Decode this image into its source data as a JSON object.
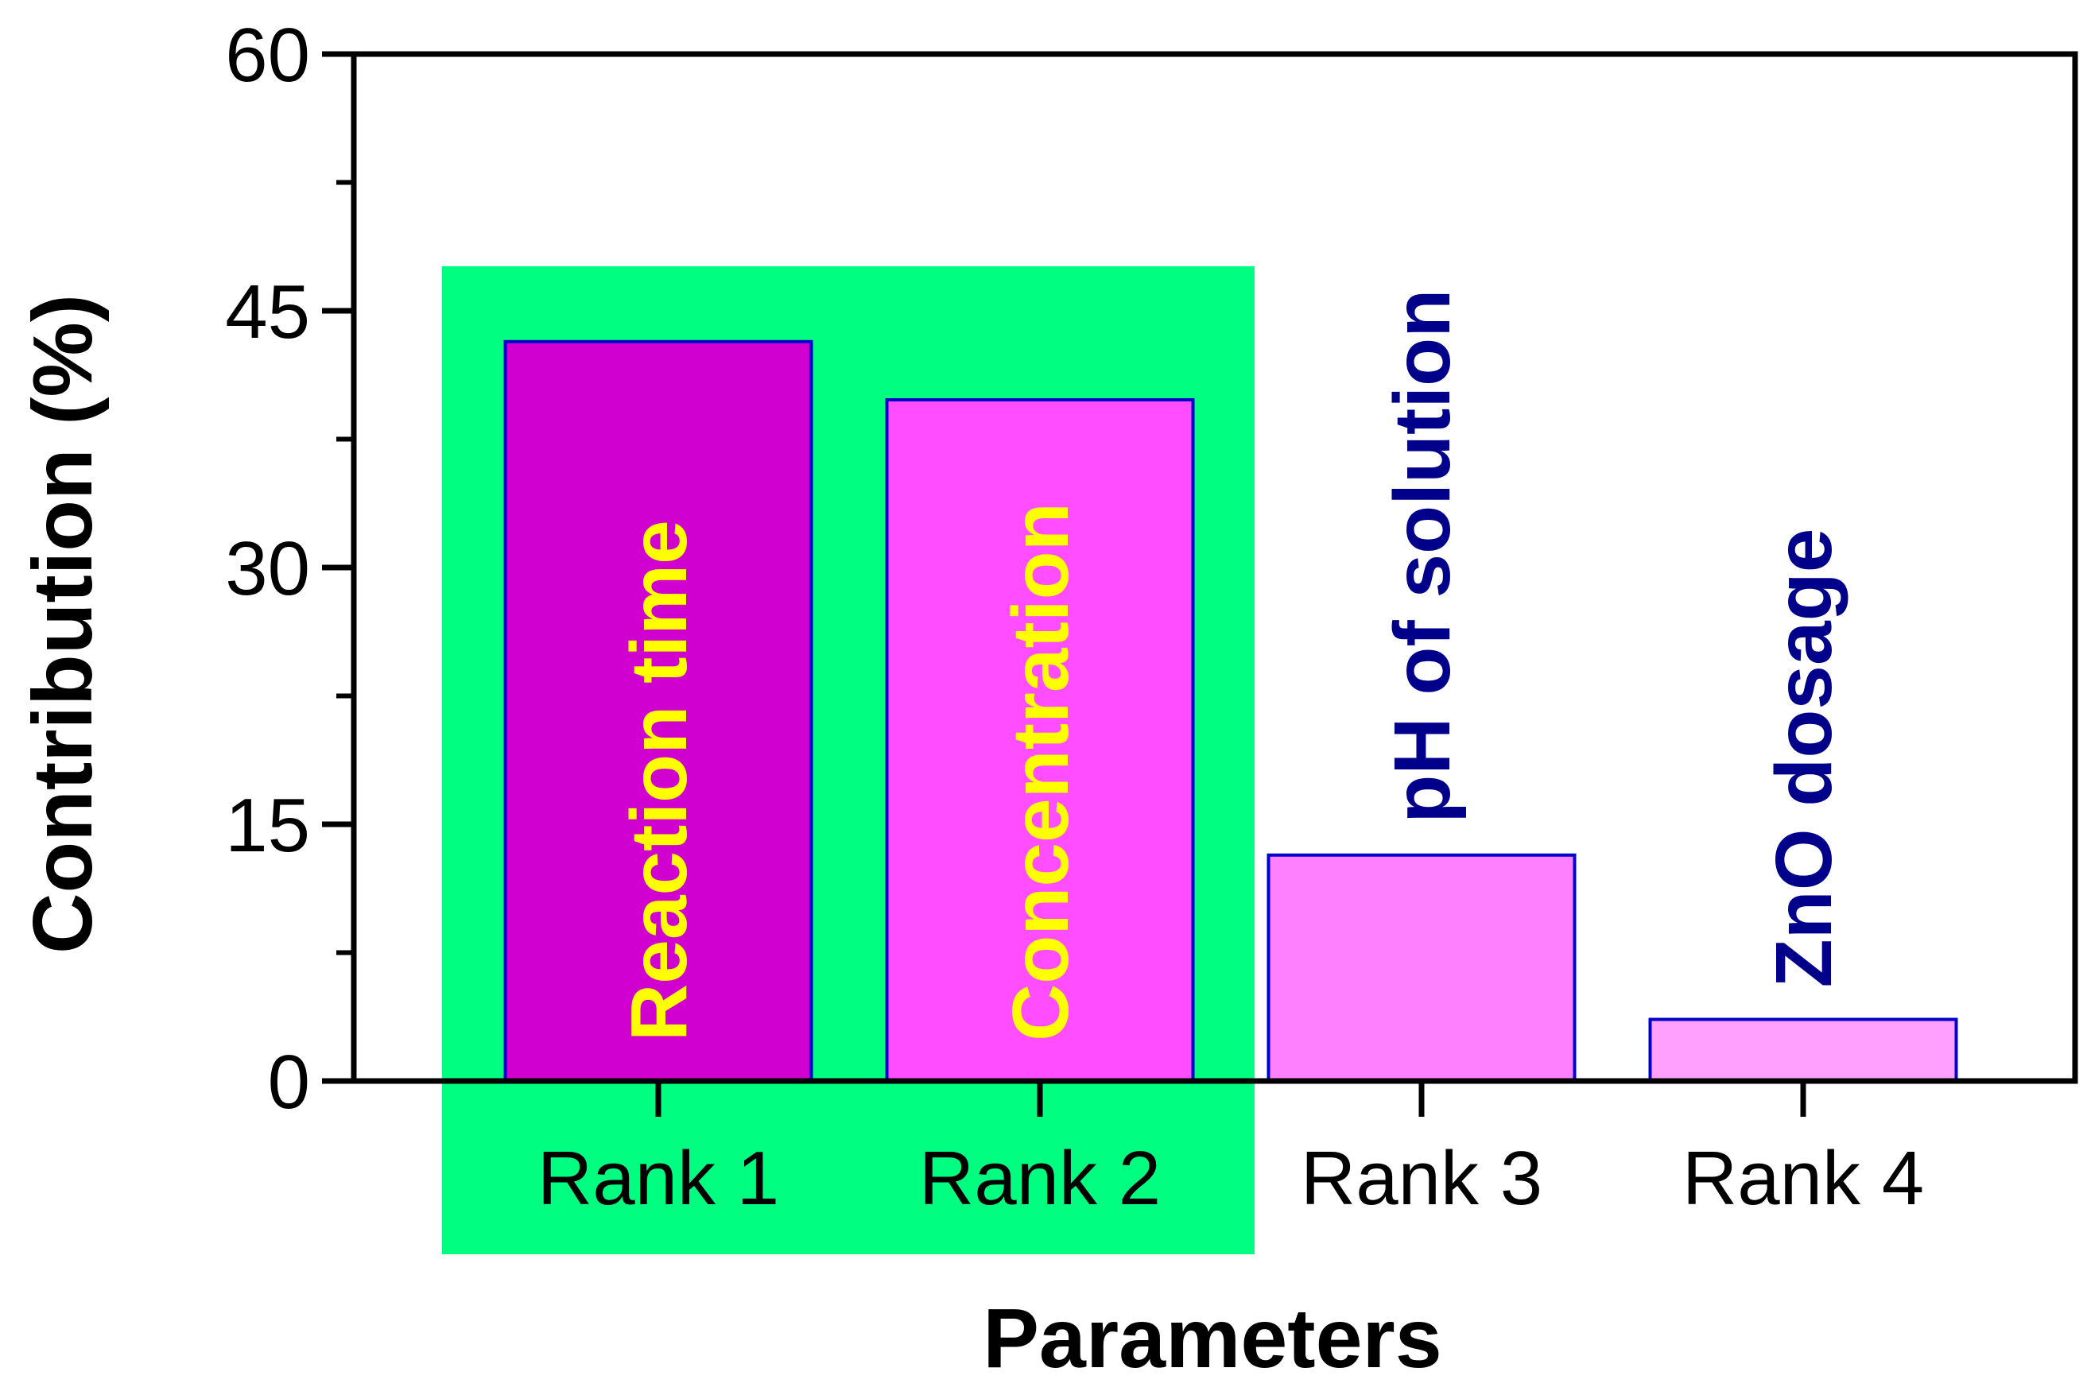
{
  "chart_data": {
    "type": "bar",
    "title": "",
    "xlabel": "Parameters",
    "ylabel": "Contribution (%)",
    "ylim": [
      0,
      60
    ],
    "yticks": [
      0,
      15,
      30,
      45,
      60
    ],
    "categories": [
      "Rank 1",
      "Rank 2",
      "Rank 3",
      "Rank 4"
    ],
    "values": [
      43.2,
      39.8,
      13.2,
      3.6
    ],
    "bar_labels": [
      "Reaction time",
      "Concentration",
      "pH of solution",
      "ZnO dosage"
    ],
    "bar_colors": [
      "#d000d0",
      "#ff4dff",
      "#ff80ff",
      "#ffa0ff"
    ],
    "bar_label_colors": [
      "#ffff00",
      "#ffff00",
      "#00008b",
      "#00008b"
    ],
    "highlight": {
      "categories": [
        "Rank 1",
        "Rank 2"
      ],
      "color": "#00ff80"
    },
    "bar_edge_color": "#0000cc",
    "grid": false
  }
}
